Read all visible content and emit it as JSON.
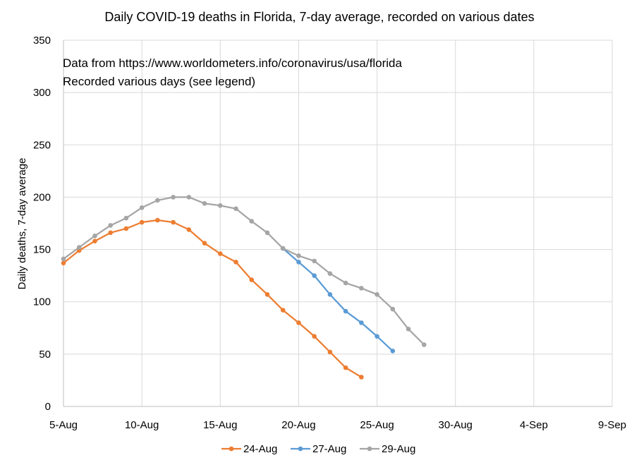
{
  "chart_data": {
    "type": "line",
    "title": "Daily COVID-19 deaths in Florida, 7-day average, recorded on various dates",
    "xlabel": "",
    "ylabel": "Daily deaths, 7-day average",
    "annotations": [
      "Data from https://www.worldometers.info/coronavirus/usa/florida",
      "Recorded various days (see legend)"
    ],
    "x_tick_labels": [
      "5-Aug",
      "10-Aug",
      "15-Aug",
      "20-Aug",
      "25-Aug",
      "30-Aug",
      "4-Sep",
      "9-Sep"
    ],
    "y_ticks": [
      0,
      50,
      100,
      150,
      200,
      250,
      300,
      350
    ],
    "xlim": [
      "5-Aug",
      "9-Sep"
    ],
    "ylim": [
      0,
      350
    ],
    "grid": true,
    "legend_position": "bottom",
    "series": [
      {
        "name": "24-Aug",
        "color": "#ed7d31",
        "x": [
          "5-Aug",
          "6-Aug",
          "7-Aug",
          "8-Aug",
          "9-Aug",
          "10-Aug",
          "11-Aug",
          "12-Aug",
          "13-Aug",
          "14-Aug",
          "15-Aug",
          "16-Aug",
          "17-Aug",
          "18-Aug",
          "19-Aug",
          "20-Aug",
          "21-Aug",
          "22-Aug",
          "23-Aug",
          "24-Aug"
        ],
        "values": [
          137,
          149,
          158,
          166,
          170,
          176,
          178,
          176,
          169,
          156,
          146,
          138,
          121,
          107,
          92,
          80,
          67,
          52,
          37,
          28
        ]
      },
      {
        "name": "27-Aug",
        "color": "#5b9bd5",
        "x": [
          "19-Aug",
          "20-Aug",
          "21-Aug",
          "22-Aug",
          "23-Aug",
          "24-Aug",
          "25-Aug",
          "26-Aug"
        ],
        "values": [
          151,
          138,
          125,
          107,
          91,
          80,
          67,
          53
        ]
      },
      {
        "name": "29-Aug",
        "color": "#a5a5a5",
        "x": [
          "5-Aug",
          "6-Aug",
          "7-Aug",
          "8-Aug",
          "9-Aug",
          "10-Aug",
          "11-Aug",
          "12-Aug",
          "13-Aug",
          "14-Aug",
          "15-Aug",
          "16-Aug",
          "17-Aug",
          "18-Aug",
          "19-Aug",
          "20-Aug",
          "21-Aug",
          "22-Aug",
          "23-Aug",
          "24-Aug",
          "25-Aug",
          "26-Aug",
          "27-Aug",
          "28-Aug"
        ],
        "values": [
          141,
          152,
          163,
          173,
          180,
          190,
          197,
          200,
          200,
          194,
          192,
          189,
          177,
          166,
          151,
          144,
          139,
          127,
          118,
          113,
          107,
          93,
          74,
          59
        ]
      }
    ]
  }
}
